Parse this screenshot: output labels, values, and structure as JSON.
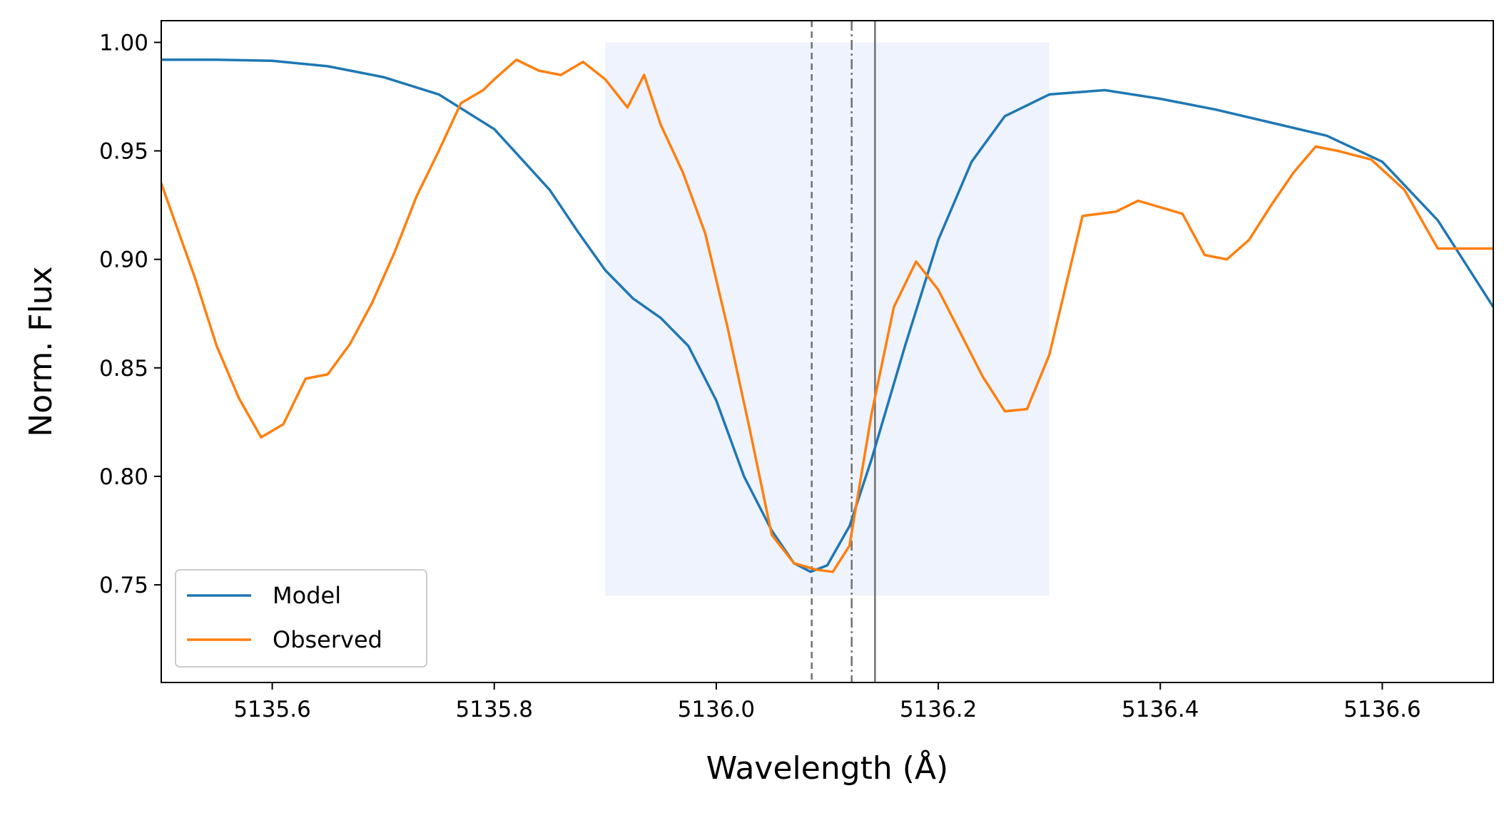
{
  "chart_data": {
    "type": "line",
    "title": "",
    "xlabel": "Wavelength (Å)",
    "ylabel": "Norm. Flux",
    "xlim": [
      5135.5,
      5136.7
    ],
    "ylim": [
      0.705,
      1.01
    ],
    "x_ticks": [
      5135.6,
      5135.8,
      5136.0,
      5136.2,
      5136.4,
      5136.6
    ],
    "x_tick_labels": [
      "5135.6",
      "5135.8",
      "5136.0",
      "5136.2",
      "5136.4",
      "5136.6"
    ],
    "y_ticks": [
      0.75,
      0.8,
      0.85,
      0.9,
      0.95,
      1.0
    ],
    "y_tick_labels": [
      "0.75",
      "0.80",
      "0.85",
      "0.90",
      "0.95",
      "1.00"
    ],
    "grid": false,
    "legend_position": "lower-left",
    "shaded_region": {
      "x": [
        5135.9,
        5136.3
      ],
      "y": [
        0.745,
        1.0
      ],
      "color": "#eef3fd"
    },
    "vertical_lines": [
      {
        "x": 5136.086,
        "style": "dashed",
        "color": "#707070"
      },
      {
        "x": 5136.122,
        "style": "dashdot",
        "color": "#707070"
      },
      {
        "x": 5136.143,
        "style": "solid",
        "color": "#707070"
      }
    ],
    "series": [
      {
        "name": "Model",
        "color": "#1f77b4",
        "x": [
          5135.5,
          5135.55,
          5135.6,
          5135.65,
          5135.7,
          5135.75,
          5135.8,
          5135.85,
          5135.875,
          5135.9,
          5135.925,
          5135.95,
          5135.975,
          5136.0,
          5136.025,
          5136.05,
          5136.07,
          5136.085,
          5136.1,
          5136.12,
          5136.14,
          5136.17,
          5136.2,
          5136.23,
          5136.26,
          5136.3,
          5136.35,
          5136.4,
          5136.45,
          5136.5,
          5136.55,
          5136.6,
          5136.65,
          5136.7
        ],
        "values": [
          0.992,
          0.992,
          0.9915,
          0.989,
          0.984,
          0.976,
          0.96,
          0.932,
          0.913,
          0.895,
          0.882,
          0.873,
          0.86,
          0.835,
          0.8,
          0.775,
          0.76,
          0.756,
          0.759,
          0.777,
          0.808,
          0.86,
          0.909,
          0.945,
          0.966,
          0.976,
          0.978,
          0.974,
          0.969,
          0.963,
          0.957,
          0.945,
          0.918,
          0.878
        ]
      },
      {
        "name": "Observed",
        "color": "#ff7f0e",
        "x": [
          5135.5,
          5135.53,
          5135.55,
          5135.57,
          5135.59,
          5135.61,
          5135.63,
          5135.65,
          5135.67,
          5135.69,
          5135.71,
          5135.73,
          5135.75,
          5135.77,
          5135.79,
          5135.8,
          5135.82,
          5135.84,
          5135.86,
          5135.88,
          5135.9,
          5135.92,
          5135.935,
          5135.95,
          5135.97,
          5135.99,
          5136.01,
          5136.03,
          5136.05,
          5136.07,
          5136.09,
          5136.105,
          5136.12,
          5136.14,
          5136.16,
          5136.18,
          5136.2,
          5136.22,
          5136.24,
          5136.26,
          5136.28,
          5136.3,
          5136.33,
          5136.36,
          5136.38,
          5136.42,
          5136.44,
          5136.46,
          5136.48,
          5136.5,
          5136.52,
          5136.54,
          5136.56,
          5136.59,
          5136.62,
          5136.65,
          5136.7
        ],
        "values": [
          0.935,
          0.892,
          0.86,
          0.836,
          0.818,
          0.824,
          0.845,
          0.847,
          0.861,
          0.88,
          0.903,
          0.929,
          0.95,
          0.972,
          0.978,
          0.983,
          0.992,
          0.987,
          0.985,
          0.991,
          0.983,
          0.97,
          0.985,
          0.962,
          0.94,
          0.912,
          0.869,
          0.822,
          0.773,
          0.76,
          0.757,
          0.756,
          0.768,
          0.829,
          0.878,
          0.899,
          0.886,
          0.866,
          0.846,
          0.83,
          0.831,
          0.856,
          0.92,
          0.922,
          0.927,
          0.921,
          0.902,
          0.9,
          0.909,
          0.925,
          0.94,
          0.952,
          0.95,
          0.946,
          0.932,
          0.905,
          0.905
        ]
      }
    ]
  }
}
